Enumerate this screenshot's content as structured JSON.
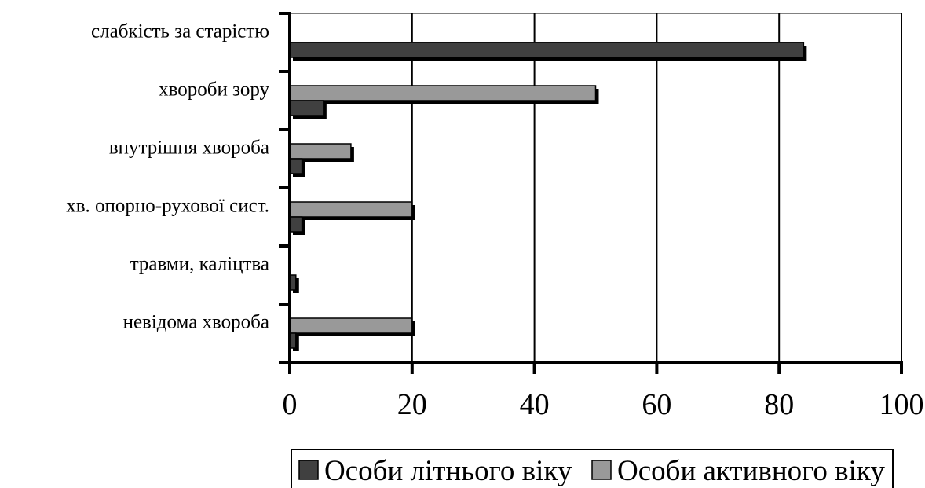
{
  "chart_data": {
    "type": "bar",
    "orientation": "horizontal",
    "categories": [
      "слабкість за старістю",
      "хвороби зору",
      "внутрішня хвороба",
      "хв. опорно-рухової сист.",
      "травми, каліцтва",
      "невідома хвороба"
    ],
    "series": [
      {
        "name": "Особи літнього віку",
        "values": [
          84,
          5.5,
          2,
          2,
          1,
          1
        ],
        "color": "#404040"
      },
      {
        "name": "Особи активного віку",
        "values": [
          0,
          50,
          10,
          20,
          0,
          20
        ],
        "color": "#999999"
      }
    ],
    "xlim": [
      0,
      100
    ],
    "xticks": [
      0,
      20,
      40,
      60,
      80,
      100
    ],
    "grid": "vertical",
    "legend_position": "bottom"
  }
}
